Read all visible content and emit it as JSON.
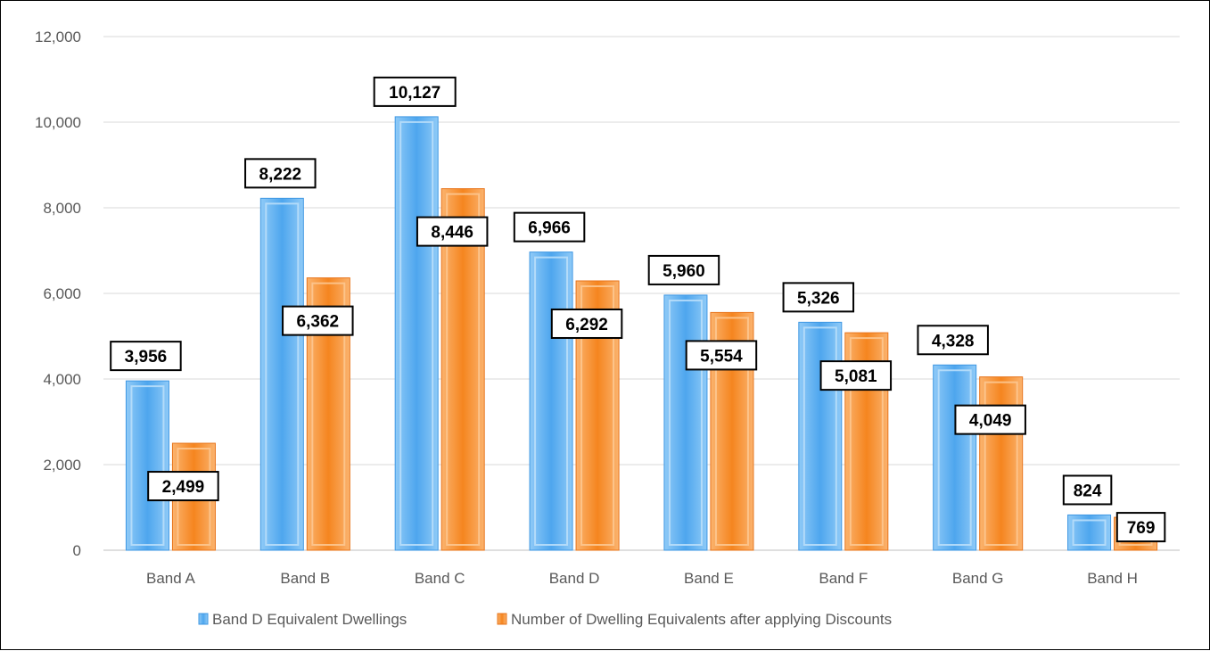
{
  "chart_data": {
    "type": "bar",
    "categories": [
      "Band A",
      "Band B",
      "Band C",
      "Band D",
      "Band E",
      "Band F",
      "Band G",
      "Band H"
    ],
    "series": [
      {
        "name": "Band D Equivalent Dwellings",
        "color": "#5aaef0",
        "values": [
          3956,
          8222,
          10127,
          6966,
          5960,
          5326,
          4328,
          824
        ],
        "labels": [
          "3,956",
          "8,222",
          "10,127",
          "6,966",
          "5,960",
          "5,326",
          "4,328",
          "824"
        ]
      },
      {
        "name": "Number of Dwelling Equivalents after applying Discounts",
        "color": "#f7913a",
        "values": [
          2499,
          6362,
          8446,
          6292,
          5554,
          5081,
          4049,
          769
        ],
        "labels": [
          "2,499",
          "6,362",
          "8,446",
          "6,292",
          "5,554",
          "5,081",
          "4,049",
          "769"
        ]
      }
    ],
    "yticks": [
      0,
      2000,
      4000,
      6000,
      8000,
      10000,
      12000
    ],
    "ytick_labels": [
      "0",
      "2,000",
      "4,000",
      "6,000",
      "8,000",
      "10,000",
      "12,000"
    ],
    "ylim": [
      0,
      12000
    ],
    "grid": true,
    "legend_position": "bottom",
    "title": "",
    "xlabel": "",
    "ylabel": ""
  }
}
